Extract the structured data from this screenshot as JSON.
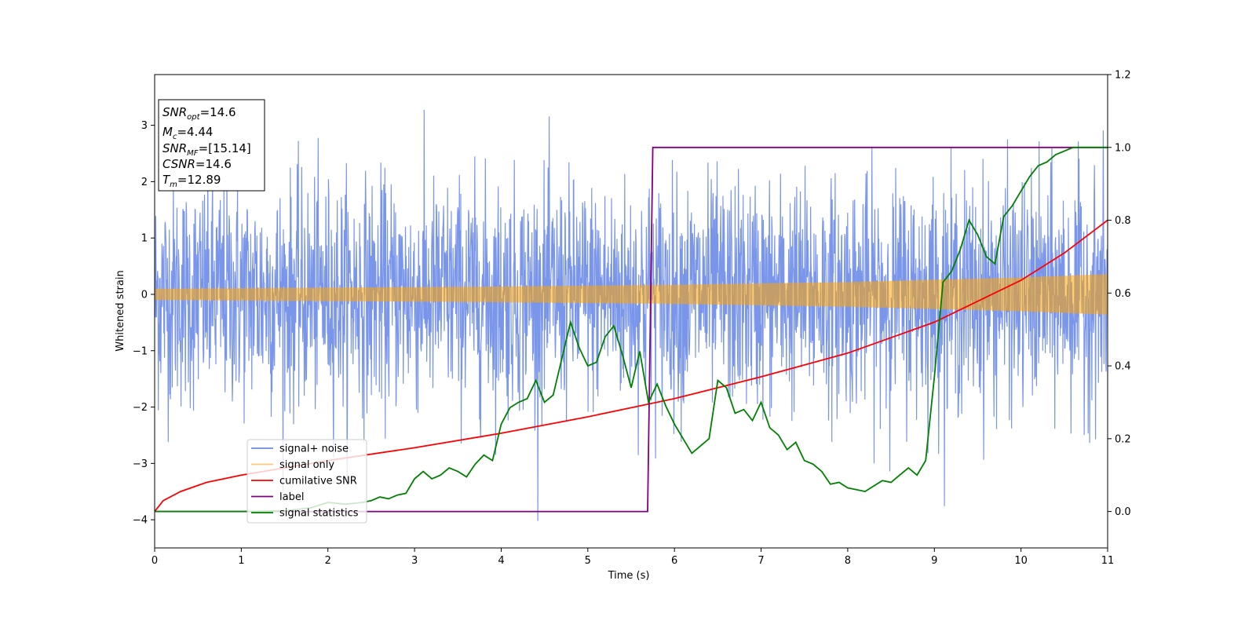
{
  "chart_data": {
    "type": "line",
    "xlabel": "Time (s)",
    "ylabel": "Whitened strain",
    "xlim": [
      0,
      11
    ],
    "ylim_left": [
      -4.5,
      3.9
    ],
    "ylim_right": [
      -0.1,
      1.2
    ],
    "x_ticks": [
      "0",
      "1",
      "2",
      "3",
      "4",
      "5",
      "6",
      "7",
      "8",
      "9",
      "10",
      "11"
    ],
    "y_left_ticks": [
      "−4",
      "−3",
      "−2",
      "−1",
      "0",
      "1",
      "2",
      "3"
    ],
    "y_right_ticks": [
      "0.0",
      "0.2",
      "0.4",
      "0.6",
      "0.8",
      "1.0",
      "1.2"
    ],
    "grid": false,
    "legend_position": "lower-left",
    "info_box": {
      "snr_opt": "=14.6",
      "mc": "=4.44",
      "snr_mf": "=[15.14]",
      "csnr": "=14.6",
      "tm": "=12.89"
    },
    "series": [
      {
        "name": "signal+ noise",
        "axis": "left",
        "color": "#4169E1",
        "description_values": {
          "x_range": [
            0,
            11
          ],
          "typical_amplitude": 1.4,
          "max": 3.55,
          "min": -4.15
        }
      },
      {
        "name": "signal only",
        "axis": "left",
        "color": "#FFA500",
        "envelope": {
          "x": [
            0,
            2,
            4,
            6,
            8,
            10,
            11
          ],
          "amplitude": [
            0.1,
            0.12,
            0.14,
            0.17,
            0.22,
            0.3,
            0.36
          ]
        }
      },
      {
        "name": "cumilative SNR",
        "axis": "right",
        "color": "#FF0000",
        "x": [
          0,
          0.1,
          0.3,
          0.6,
          1,
          1.5,
          2,
          3,
          4,
          5,
          6,
          7,
          8,
          9,
          10,
          10.5,
          11
        ],
        "values": [
          0.0,
          0.03,
          0.055,
          0.08,
          0.1,
          0.12,
          0.14,
          0.175,
          0.215,
          0.26,
          0.31,
          0.37,
          0.435,
          0.52,
          0.635,
          0.71,
          0.8
        ]
      },
      {
        "name": "label",
        "axis": "right",
        "color": "#800080",
        "x": [
          0,
          5.69,
          5.75,
          11
        ],
        "values": [
          0.0,
          0.0,
          1.0,
          1.0
        ]
      },
      {
        "name": "signal statistics",
        "axis": "right",
        "color": "#008000",
        "x": [
          0,
          0.5,
          1,
          1.5,
          1.8,
          2,
          2.2,
          2.4,
          2.5,
          2.6,
          2.7,
          2.8,
          2.9,
          3.0,
          3.1,
          3.2,
          3.3,
          3.4,
          3.5,
          3.6,
          3.7,
          3.8,
          3.9,
          4.0,
          4.1,
          4.2,
          4.3,
          4.4,
          4.5,
          4.6,
          4.7,
          4.8,
          4.9,
          5.0,
          5.1,
          5.2,
          5.3,
          5.4,
          5.5,
          5.6,
          5.7,
          5.8,
          5.9,
          6.0,
          6.1,
          6.2,
          6.3,
          6.4,
          6.5,
          6.6,
          6.7,
          6.8,
          6.9,
          7.0,
          7.1,
          7.2,
          7.3,
          7.4,
          7.5,
          7.6,
          7.7,
          7.8,
          7.9,
          8.0,
          8.1,
          8.2,
          8.3,
          8.4,
          8.5,
          8.6,
          8.7,
          8.8,
          8.9,
          9.0,
          9.1,
          9.2,
          9.3,
          9.4,
          9.5,
          9.6,
          9.7,
          9.8,
          9.9,
          10.0,
          10.1,
          10.2,
          10.3,
          10.4,
          10.5,
          10.6,
          10.7,
          10.8,
          10.9,
          11.0
        ],
        "values": [
          0.0,
          0.0,
          0.0,
          0.002,
          0.01,
          0.025,
          0.02,
          0.025,
          0.03,
          0.04,
          0.035,
          0.045,
          0.05,
          0.09,
          0.11,
          0.09,
          0.1,
          0.12,
          0.11,
          0.095,
          0.13,
          0.155,
          0.14,
          0.24,
          0.285,
          0.3,
          0.31,
          0.36,
          0.3,
          0.32,
          0.42,
          0.52,
          0.45,
          0.4,
          0.41,
          0.48,
          0.51,
          0.43,
          0.34,
          0.44,
          0.3,
          0.35,
          0.29,
          0.24,
          0.2,
          0.16,
          0.18,
          0.2,
          0.36,
          0.34,
          0.27,
          0.28,
          0.25,
          0.3,
          0.23,
          0.21,
          0.17,
          0.19,
          0.14,
          0.13,
          0.11,
          0.075,
          0.08,
          0.065,
          0.06,
          0.055,
          0.07,
          0.085,
          0.08,
          0.1,
          0.12,
          0.1,
          0.14,
          0.37,
          0.63,
          0.66,
          0.72,
          0.8,
          0.76,
          0.7,
          0.68,
          0.81,
          0.84,
          0.88,
          0.92,
          0.95,
          0.96,
          0.98,
          0.99,
          1.0,
          1.0,
          1.0,
          1.0,
          1.0
        ]
      }
    ]
  }
}
